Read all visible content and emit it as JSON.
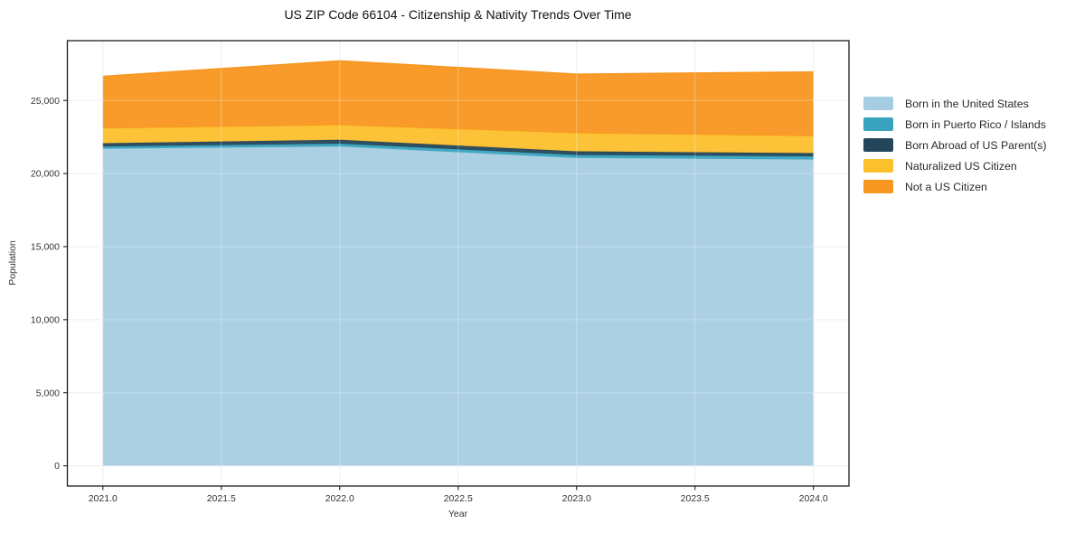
{
  "title": "US ZIP Code 66104 - Citizenship & Nativity Trends Over Time",
  "xlabel": "Year",
  "ylabel": "Population",
  "chart_data": {
    "type": "area",
    "stacked": true,
    "title": "US ZIP Code 66104 - Citizenship & Nativity Trends Over Time",
    "xlabel": "Year",
    "ylabel": "Population",
    "x": [
      2021,
      2022,
      2023,
      2024
    ],
    "series": [
      {
        "name": "Born in the United States",
        "color": "#a6cee3",
        "values": [
          21700,
          21850,
          21070,
          20960
        ]
      },
      {
        "name": "Born in Puerto Rico / Islands",
        "color": "#39a3bd",
        "values": [
          150,
          200,
          200,
          220
        ]
      },
      {
        "name": "Born Abroad of US Parent(s)",
        "color": "#25465a",
        "values": [
          220,
          260,
          250,
          220
        ]
      },
      {
        "name": "Naturalized US Citizen",
        "color": "#fcc02d",
        "values": [
          1020,
          1000,
          1240,
          1160
        ]
      },
      {
        "name": "Not a US Citizen",
        "color": "#f8961f",
        "values": [
          3560,
          4400,
          4040,
          4390
        ]
      }
    ],
    "stack_totals": [
      26650,
      27710,
      26800,
      26950
    ],
    "x_tick_labels": [
      "2021.0",
      "2021.5",
      "2022.0",
      "2022.5",
      "2023.0",
      "2023.5",
      "2024.0"
    ],
    "x_tick_values": [
      2021.0,
      2021.5,
      2022.0,
      2022.5,
      2023.0,
      2023.5,
      2024.0
    ],
    "y_tick_labels": [
      "0",
      "5,000",
      "10,000",
      "15,000",
      "20,000",
      "25,000"
    ],
    "y_tick_values": [
      0,
      5000,
      10000,
      15000,
      20000,
      25000
    ],
    "xlim": [
      2020.85,
      2024.15
    ],
    "ylim": [
      -1385,
      29095
    ],
    "grid": true,
    "legend_position": "outside-right-top"
  },
  "colors": {
    "background": "#ffffff",
    "grid": "#e7e7e7",
    "grid_overlay": "rgba(255,255,255,0.32)",
    "spine": "#1c1c1c",
    "tick": "#222222",
    "tick_label": "#333333"
  }
}
